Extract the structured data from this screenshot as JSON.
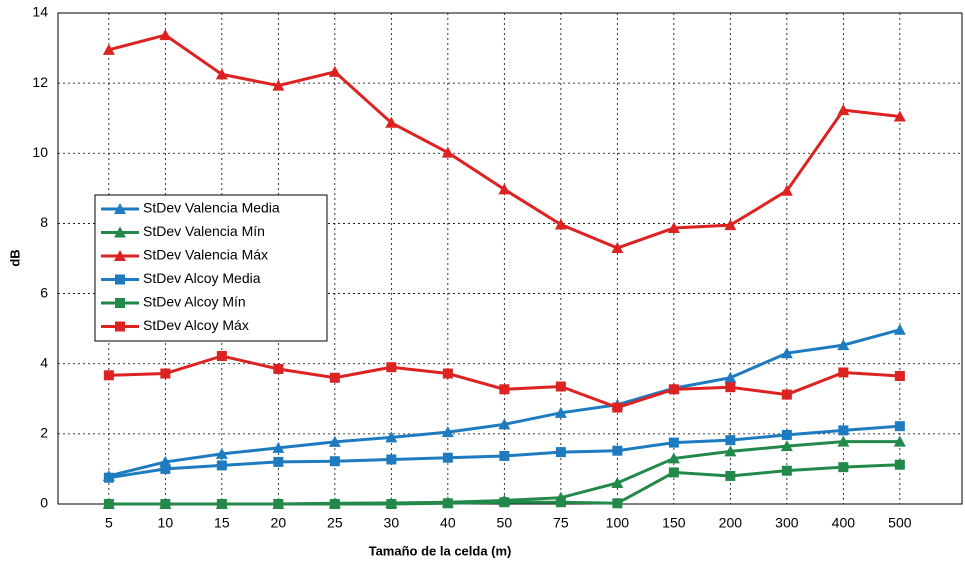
{
  "chart_data": {
    "type": "line",
    "x_label": "Tamaño de la celda (m)",
    "y_label": "dB",
    "categories": [
      "5",
      "10",
      "15",
      "20",
      "25",
      "30",
      "40",
      "50",
      "75",
      "100",
      "150",
      "200",
      "300",
      "400",
      "500"
    ],
    "ylim": [
      0,
      14
    ],
    "yticks": [
      0,
      2,
      4,
      6,
      8,
      10,
      12,
      14
    ],
    "grid": true,
    "legend": "left",
    "series": [
      {
        "name": "StDev Valencia Media",
        "color": "#1f7bc0",
        "marker": "triangle",
        "values": [
          0.8,
          1.2,
          1.43,
          1.6,
          1.77,
          1.9,
          2.05,
          2.27,
          2.6,
          2.83,
          3.3,
          3.6,
          4.3,
          4.53,
          4.97
        ]
      },
      {
        "name": "StDev Valencia Mín",
        "color": "#23894a",
        "marker": "triangle",
        "values": [
          0,
          0,
          0,
          0,
          0.02,
          0.03,
          0.05,
          0.1,
          0.18,
          0.6,
          1.3,
          1.5,
          1.65,
          1.78,
          1.78
        ]
      },
      {
        "name": "StDev Valencia Máx",
        "color": "#dd2222",
        "marker": "triangle",
        "values": [
          12.95,
          13.37,
          12.25,
          11.93,
          12.32,
          10.87,
          10.02,
          8.97,
          7.97,
          7.3,
          7.87,
          7.95,
          8.93,
          11.23,
          11.05
        ]
      },
      {
        "name": "StDev Alcoy Media",
        "color": "#1f7bc0",
        "marker": "square",
        "values": [
          0.75,
          1.0,
          1.1,
          1.2,
          1.22,
          1.27,
          1.32,
          1.37,
          1.48,
          1.52,
          1.75,
          1.82,
          1.97,
          2.1,
          2.22
        ]
      },
      {
        "name": "StDev Alcoy Mín",
        "color": "#23894a",
        "marker": "square",
        "values": [
          0,
          0,
          0,
          0,
          0,
          0,
          0.02,
          0.05,
          0.05,
          0.02,
          0.9,
          0.8,
          0.95,
          1.05,
          1.12
        ]
      },
      {
        "name": "StDev Alcoy Máx",
        "color": "#dd2222",
        "marker": "square",
        "values": [
          3.67,
          3.72,
          4.22,
          3.85,
          3.6,
          3.9,
          3.72,
          3.27,
          3.35,
          2.75,
          3.27,
          3.33,
          3.12,
          3.75,
          3.65
        ]
      }
    ]
  }
}
